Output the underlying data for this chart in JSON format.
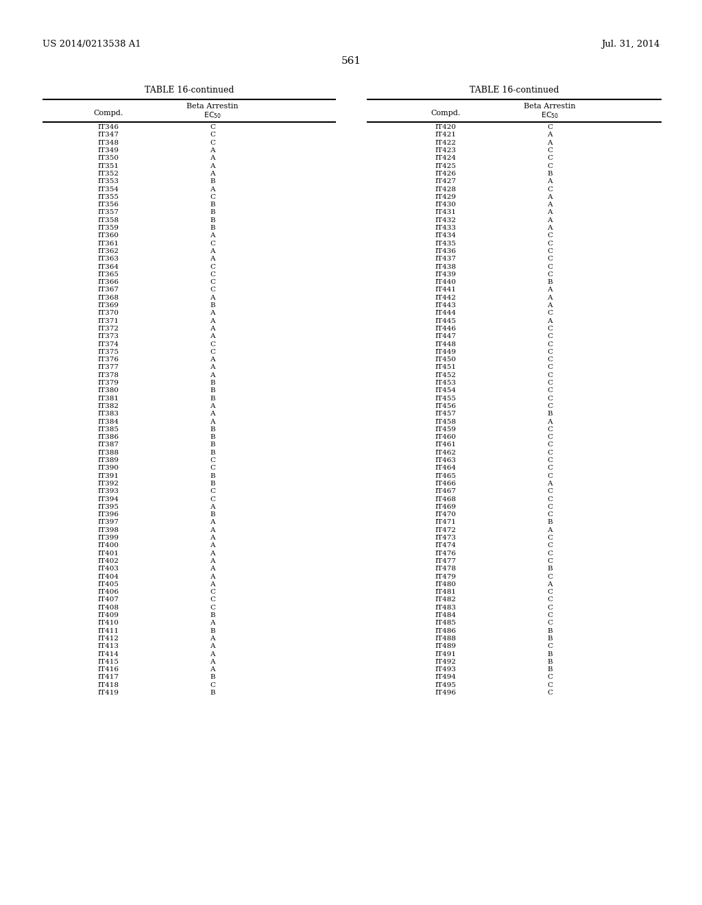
{
  "page_number": "561",
  "patent_left": "US 2014/0213538 A1",
  "patent_right": "Jul. 31, 2014",
  "table_title": "TABLE 16-continued",
  "col1_header": "Compd.",
  "col2_header_line1": "Beta Arrestin",
  "col2_header_line2": "EC$_{50}$",
  "left_data": [
    [
      "IT346",
      "C"
    ],
    [
      "IT347",
      "C"
    ],
    [
      "IT348",
      "C"
    ],
    [
      "IT349",
      "A"
    ],
    [
      "IT350",
      "A"
    ],
    [
      "IT351",
      "A"
    ],
    [
      "IT352",
      "A"
    ],
    [
      "IT353",
      "B"
    ],
    [
      "IT354",
      "A"
    ],
    [
      "IT355",
      "C"
    ],
    [
      "IT356",
      "B"
    ],
    [
      "IT357",
      "B"
    ],
    [
      "IT358",
      "B"
    ],
    [
      "IT359",
      "B"
    ],
    [
      "IT360",
      "A"
    ],
    [
      "IT361",
      "C"
    ],
    [
      "IT362",
      "A"
    ],
    [
      "IT363",
      "A"
    ],
    [
      "IT364",
      "C"
    ],
    [
      "IT365",
      "C"
    ],
    [
      "IT366",
      "C"
    ],
    [
      "IT367",
      "C"
    ],
    [
      "IT368",
      "A"
    ],
    [
      "IT369",
      "B"
    ],
    [
      "IT370",
      "A"
    ],
    [
      "IT371",
      "A"
    ],
    [
      "IT372",
      "A"
    ],
    [
      "IT373",
      "A"
    ],
    [
      "IT374",
      "C"
    ],
    [
      "IT375",
      "C"
    ],
    [
      "IT376",
      "A"
    ],
    [
      "IT377",
      "A"
    ],
    [
      "IT378",
      "A"
    ],
    [
      "IT379",
      "B"
    ],
    [
      "IT380",
      "B"
    ],
    [
      "IT381",
      "B"
    ],
    [
      "IT382",
      "A"
    ],
    [
      "IT383",
      "A"
    ],
    [
      "IT384",
      "A"
    ],
    [
      "IT385",
      "B"
    ],
    [
      "IT386",
      "B"
    ],
    [
      "IT387",
      "B"
    ],
    [
      "IT388",
      "B"
    ],
    [
      "IT389",
      "C"
    ],
    [
      "IT390",
      "C"
    ],
    [
      "IT391",
      "B"
    ],
    [
      "IT392",
      "B"
    ],
    [
      "IT393",
      "C"
    ],
    [
      "IT394",
      "C"
    ],
    [
      "IT395",
      "A"
    ],
    [
      "IT396",
      "B"
    ],
    [
      "IT397",
      "A"
    ],
    [
      "IT398",
      "A"
    ],
    [
      "IT399",
      "A"
    ],
    [
      "IT400",
      "A"
    ],
    [
      "IT401",
      "A"
    ],
    [
      "IT402",
      "A"
    ],
    [
      "IT403",
      "A"
    ],
    [
      "IT404",
      "A"
    ],
    [
      "IT405",
      "A"
    ],
    [
      "IT406",
      "C"
    ],
    [
      "IT407",
      "C"
    ],
    [
      "IT408",
      "C"
    ],
    [
      "IT409",
      "B"
    ],
    [
      "IT410",
      "A"
    ],
    [
      "IT411",
      "B"
    ],
    [
      "IT412",
      "A"
    ],
    [
      "IT413",
      "A"
    ],
    [
      "IT414",
      "A"
    ],
    [
      "IT415",
      "A"
    ],
    [
      "IT416",
      "A"
    ],
    [
      "IT417",
      "B"
    ],
    [
      "IT418",
      "C"
    ],
    [
      "IT419",
      "B"
    ]
  ],
  "right_data": [
    [
      "IT420",
      "C"
    ],
    [
      "IT421",
      "A"
    ],
    [
      "IT422",
      "A"
    ],
    [
      "IT423",
      "C"
    ],
    [
      "IT424",
      "C"
    ],
    [
      "IT425",
      "C"
    ],
    [
      "IT426",
      "B"
    ],
    [
      "IT427",
      "A"
    ],
    [
      "IT428",
      "C"
    ],
    [
      "IT429",
      "A"
    ],
    [
      "IT430",
      "A"
    ],
    [
      "IT431",
      "A"
    ],
    [
      "IT432",
      "A"
    ],
    [
      "IT433",
      "A"
    ],
    [
      "IT434",
      "C"
    ],
    [
      "IT435",
      "C"
    ],
    [
      "IT436",
      "C"
    ],
    [
      "IT437",
      "C"
    ],
    [
      "IT438",
      "C"
    ],
    [
      "IT439",
      "C"
    ],
    [
      "IT440",
      "B"
    ],
    [
      "IT441",
      "A"
    ],
    [
      "IT442",
      "A"
    ],
    [
      "IT443",
      "A"
    ],
    [
      "IT444",
      "C"
    ],
    [
      "IT445",
      "A"
    ],
    [
      "IT446",
      "C"
    ],
    [
      "IT447",
      "C"
    ],
    [
      "IT448",
      "C"
    ],
    [
      "IT449",
      "C"
    ],
    [
      "IT450",
      "C"
    ],
    [
      "IT451",
      "C"
    ],
    [
      "IT452",
      "C"
    ],
    [
      "IT453",
      "C"
    ],
    [
      "IT454",
      "C"
    ],
    [
      "IT455",
      "C"
    ],
    [
      "IT456",
      "C"
    ],
    [
      "IT457",
      "B"
    ],
    [
      "IT458",
      "A"
    ],
    [
      "IT459",
      "C"
    ],
    [
      "IT460",
      "C"
    ],
    [
      "IT461",
      "C"
    ],
    [
      "IT462",
      "C"
    ],
    [
      "IT463",
      "C"
    ],
    [
      "IT464",
      "C"
    ],
    [
      "IT465",
      "C"
    ],
    [
      "IT466",
      "A"
    ],
    [
      "IT467",
      "C"
    ],
    [
      "IT468",
      "C"
    ],
    [
      "IT469",
      "C"
    ],
    [
      "IT470",
      "C"
    ],
    [
      "IT471",
      "B"
    ],
    [
      "IT472",
      "A"
    ],
    [
      "IT473",
      "C"
    ],
    [
      "IT474",
      "C"
    ],
    [
      "IT476",
      "C"
    ],
    [
      "IT477",
      "C"
    ],
    [
      "IT478",
      "B"
    ],
    [
      "IT479",
      "C"
    ],
    [
      "IT480",
      "A"
    ],
    [
      "IT481",
      "C"
    ],
    [
      "IT482",
      "C"
    ],
    [
      "IT483",
      "C"
    ],
    [
      "IT484",
      "C"
    ],
    [
      "IT485",
      "C"
    ],
    [
      "IT486",
      "B"
    ],
    [
      "IT488",
      "B"
    ],
    [
      "IT489",
      "C"
    ],
    [
      "IT491",
      "B"
    ],
    [
      "IT492",
      "B"
    ],
    [
      "IT493",
      "B"
    ],
    [
      "IT494",
      "C"
    ],
    [
      "IT495",
      "C"
    ],
    [
      "IT496",
      "C"
    ]
  ],
  "bg": "#ffffff",
  "fg": "#000000",
  "fs_patent": 9.5,
  "fs_page": 11,
  "fs_title": 9,
  "fs_header": 8,
  "fs_data": 7.5
}
